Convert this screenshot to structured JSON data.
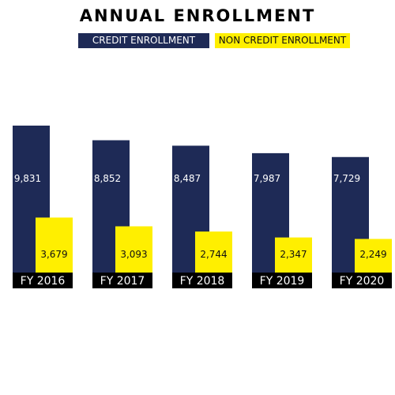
{
  "chart_data": {
    "type": "bar",
    "title": "ANNUAL ENROLLMENT",
    "categories": [
      "FY 2016",
      "FY 2017",
      "FY 2018",
      "FY 2019",
      "FY 2020"
    ],
    "series": [
      {
        "name": "CREDIT ENROLLMENT",
        "values": [
          9831,
          8852,
          8487,
          7987,
          7729
        ],
        "labels": [
          "9,831",
          "8,852",
          "8,487",
          "7,987",
          "7,729"
        ],
        "color": "#1e2a56"
      },
      {
        "name": "NON CREDIT ENROLLMENT",
        "values": [
          3679,
          3093,
          2744,
          2347,
          2249
        ],
        "labels": [
          "3,679",
          "3,093",
          "2,744",
          "2,347",
          "2,249"
        ],
        "color": "#ffef00"
      }
    ],
    "ylim": [
      0,
      10500
    ],
    "grid": false,
    "legend": "top",
    "colors": {
      "credit": "#1e2a56",
      "noncredit": "#ffef00",
      "category_band": "#000000"
    }
  }
}
